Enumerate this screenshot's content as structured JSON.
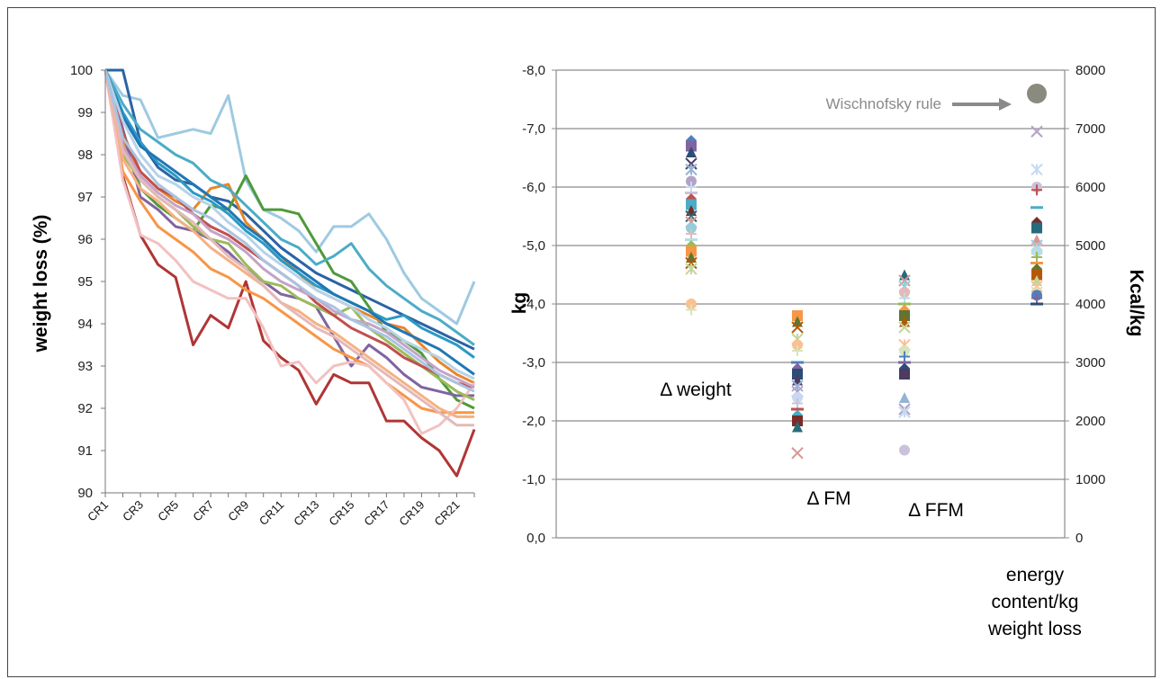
{
  "chart_data": [
    {
      "type": "line",
      "ylabel": "weight loss (%)",
      "xlabel": "",
      "ylim": [
        90,
        100
      ],
      "y_ticks": [
        "90",
        "91",
        "92",
        "93",
        "94",
        "95",
        "96",
        "97",
        "98",
        "99",
        "100"
      ],
      "x": [
        "CR1",
        "CR2",
        "CR3",
        "CR4",
        "CR5",
        "CR6",
        "CR7",
        "CR8",
        "CR9",
        "CR10",
        "CR11",
        "CR12",
        "CR13",
        "CR14",
        "CR15",
        "CR16",
        "CR17",
        "CR18",
        "CR19",
        "CR20",
        "CR21",
        "CR22"
      ],
      "x_tick_labels": [
        "CR1",
        "CR3",
        "CR5",
        "CR7",
        "CR9",
        "CR11",
        "CR13",
        "CR15",
        "CR17",
        "CR19",
        "CR21"
      ],
      "grid": false,
      "legend": "none",
      "series": [
        {
          "color": "#9ecae1",
          "values": [
            100,
            99.4,
            99.3,
            98.4,
            98.5,
            98.6,
            98.5,
            99.4,
            97.4,
            96.7,
            96.5,
            96.2,
            95.7,
            96.3,
            96.3,
            96.6,
            96.0,
            95.2,
            94.6,
            94.3,
            94.0,
            95.0
          ]
        },
        {
          "color": "#b03535",
          "values": [
            100,
            97.5,
            96.1,
            95.4,
            95.1,
            93.5,
            94.2,
            93.9,
            95.0,
            93.6,
            93.2,
            92.9,
            92.1,
            92.8,
            92.6,
            92.6,
            91.7,
            91.7,
            91.3,
            91.0,
            90.4,
            91.5
          ]
        },
        {
          "color": "#2a63a5",
          "values": [
            100,
            100,
            98.3,
            97.7,
            97.4,
            97.3,
            97.0,
            96.9,
            96.6,
            96.2,
            95.8,
            95.5,
            95.2,
            95.0,
            94.8,
            94.6,
            94.4,
            94.2,
            94.0,
            93.8,
            93.6,
            93.4
          ]
        },
        {
          "color": "#4e9a3a",
          "values": [
            100,
            98.6,
            97.2,
            96.8,
            96.5,
            96.2,
            96.8,
            96.7,
            97.5,
            96.7,
            96.7,
            96.6,
            95.9,
            95.2,
            95.0,
            94.4,
            93.8,
            93.6,
            93.3,
            92.7,
            92.2,
            92.0
          ]
        },
        {
          "color": "#e8862a",
          "values": [
            100,
            98.3,
            97.6,
            97.2,
            96.9,
            96.7,
            97.2,
            97.3,
            96.4,
            96.0,
            95.6,
            95.2,
            94.8,
            94.6,
            94.4,
            94.2,
            94.0,
            93.9,
            93.5,
            93.1,
            92.8,
            92.6
          ]
        },
        {
          "color": "#8064a2",
          "values": [
            100,
            98.6,
            97.0,
            96.7,
            96.3,
            96.2,
            96.0,
            95.7,
            95.3,
            95.0,
            94.7,
            94.6,
            94.4,
            93.7,
            93.0,
            93.5,
            93.2,
            92.8,
            92.5,
            92.4,
            92.3,
            92.3
          ]
        },
        {
          "color": "#2a9ac4",
          "values": [
            100,
            99.0,
            98.3,
            97.8,
            97.5,
            97.1,
            96.9,
            96.6,
            96.2,
            95.9,
            95.5,
            95.2,
            94.9,
            94.7,
            94.5,
            94.3,
            94.1,
            94.2,
            93.9,
            93.7,
            93.5,
            93.2
          ]
        },
        {
          "color": "#f79646",
          "values": [
            100,
            97.6,
            96.9,
            96.3,
            96.0,
            95.7,
            95.3,
            95.1,
            94.8,
            94.6,
            94.3,
            94.0,
            93.7,
            93.4,
            93.2,
            93.0,
            92.6,
            92.3,
            92.0,
            91.9,
            91.9,
            91.9
          ]
        },
        {
          "color": "#f2c1c1",
          "values": [
            100,
            97.4,
            96.1,
            95.9,
            95.5,
            95.0,
            94.8,
            94.6,
            94.6,
            93.9,
            93.0,
            93.1,
            92.6,
            93.0,
            93.1,
            93.0,
            92.6,
            92.2,
            91.4,
            91.6,
            92.0,
            92.6
          ]
        },
        {
          "color": "#4bacc6",
          "values": [
            100,
            99.2,
            98.6,
            98.3,
            98.0,
            97.8,
            97.4,
            97.2,
            96.8,
            96.4,
            96.0,
            95.8,
            95.4,
            95.6,
            95.9,
            95.3,
            94.9,
            94.6,
            94.3,
            94.1,
            93.8,
            93.5
          ]
        },
        {
          "color": "#9bbb59",
          "values": [
            100,
            98.0,
            97.4,
            97.0,
            96.7,
            96.3,
            96.0,
            95.9,
            95.4,
            95.0,
            94.9,
            94.6,
            94.4,
            94.2,
            94.4,
            93.9,
            93.6,
            93.3,
            93.0,
            92.7,
            92.4,
            92.2
          ]
        },
        {
          "color": "#1f77b4",
          "values": [
            100,
            98.9,
            98.2,
            97.9,
            97.6,
            97.3,
            97.0,
            96.7,
            96.3,
            96.0,
            95.6,
            95.3,
            95.0,
            94.7,
            94.5,
            94.3,
            94.0,
            93.8,
            93.6,
            93.4,
            93.1,
            92.8
          ]
        },
        {
          "color": "#c0504d",
          "values": [
            100,
            98.5,
            97.6,
            97.2,
            97.0,
            96.6,
            96.3,
            96.1,
            95.8,
            95.5,
            95.2,
            94.9,
            94.5,
            94.2,
            93.9,
            93.7,
            93.5,
            93.2,
            93.0,
            92.8,
            92.6,
            92.5
          ]
        },
        {
          "color": "#c5a3c8",
          "values": [
            100,
            98.2,
            97.5,
            97.1,
            96.8,
            96.6,
            96.2,
            96.0,
            95.7,
            95.3,
            95.0,
            94.8,
            94.6,
            94.3,
            94.1,
            94.0,
            93.8,
            93.5,
            93.2,
            92.9,
            92.7,
            92.5
          ]
        },
        {
          "color": "#b7d3e8",
          "values": [
            100,
            98.8,
            98.0,
            97.5,
            97.3,
            97.0,
            96.8,
            96.4,
            96.1,
            95.7,
            95.4,
            95.1,
            94.8,
            94.6,
            94.4,
            94.1,
            93.9,
            93.6,
            93.4,
            93.2,
            92.9,
            92.7
          ]
        },
        {
          "color": "#f5b183",
          "values": [
            100,
            97.9,
            97.2,
            96.9,
            96.5,
            96.2,
            95.8,
            95.5,
            95.2,
            94.9,
            94.5,
            94.3,
            94.0,
            93.8,
            93.5,
            93.2,
            92.9,
            92.6,
            92.3,
            92.0,
            91.8,
            91.8
          ]
        },
        {
          "color": "#e3b9b9",
          "values": [
            100,
            98.1,
            97.4,
            97.0,
            96.7,
            96.4,
            96.0,
            95.6,
            95.3,
            94.9,
            94.5,
            94.2,
            93.9,
            93.7,
            93.4,
            93.1,
            92.8,
            92.5,
            92.2,
            91.9,
            91.6,
            91.6
          ]
        },
        {
          "color": "#a9c4e2",
          "values": [
            100,
            98.4,
            97.8,
            97.3,
            97.0,
            96.7,
            96.5,
            96.2,
            95.9,
            95.5,
            95.2,
            94.9,
            94.6,
            94.4,
            94.1,
            93.9,
            93.7,
            93.4,
            93.1,
            92.8,
            92.6,
            92.4
          ]
        }
      ]
    },
    {
      "type": "scatter",
      "ylabel": "kg",
      "y2label": "Kcal/kg",
      "ylim": [
        0,
        -8
      ],
      "y_ticks": [
        "0,0",
        "-1,0",
        "-2,0",
        "-3,0",
        "-4,0",
        "-5,0",
        "-6,0",
        "-7,0",
        "-8,0"
      ],
      "y2lim": [
        0,
        8000
      ],
      "y2_ticks": [
        "0",
        "1000",
        "2000",
        "3000",
        "4000",
        "5000",
        "6000",
        "7000",
        "8000"
      ],
      "grid": true,
      "legend": "none",
      "groups": [
        {
          "label": "Δ weight",
          "axis": "left",
          "values": [
            -6.8,
            -6.7,
            -6.6,
            -6.4,
            -6.3,
            -6.1,
            -6.0,
            -5.9,
            -5.8,
            -5.7,
            -5.6,
            -5.5,
            -5.4,
            -5.3,
            -5.2,
            -5.1,
            -5.0,
            -4.9,
            -4.8,
            -4.7,
            -4.6,
            -4.0,
            -3.9
          ]
        },
        {
          "label": "Δ FM",
          "axis": "left",
          "values": [
            -3.8,
            -3.7,
            -3.6,
            -3.4,
            -3.3,
            -3.2,
            -3.0,
            -2.9,
            -2.8,
            -2.7,
            -2.6,
            -2.5,
            -2.4,
            -2.3,
            -2.2,
            -2.1,
            -2.0,
            -1.9,
            -1.45
          ]
        },
        {
          "label": "Δ FFM",
          "axis": "left",
          "values": [
            -4.5,
            -4.4,
            -4.3,
            -4.2,
            -4.1,
            -4.0,
            -3.9,
            -3.8,
            -3.7,
            -3.6,
            -3.3,
            -3.2,
            -3.1,
            -3.0,
            -2.9,
            -2.8,
            -2.4,
            -2.2,
            -2.15,
            -1.5
          ]
        },
        {
          "label": "energy content/kg weight loss",
          "axis": "right",
          "values": [
            6950,
            6300,
            6000,
            5950,
            5650,
            5400,
            5300,
            5100,
            5000,
            4950,
            4900,
            4800,
            4700,
            4600,
            4500,
            4400,
            4300,
            4200,
            4150,
            4100,
            4000
          ]
        }
      ],
      "annotation": {
        "text": "Wischnofsky rule",
        "value": 7600,
        "axis": "right"
      }
    }
  ]
}
